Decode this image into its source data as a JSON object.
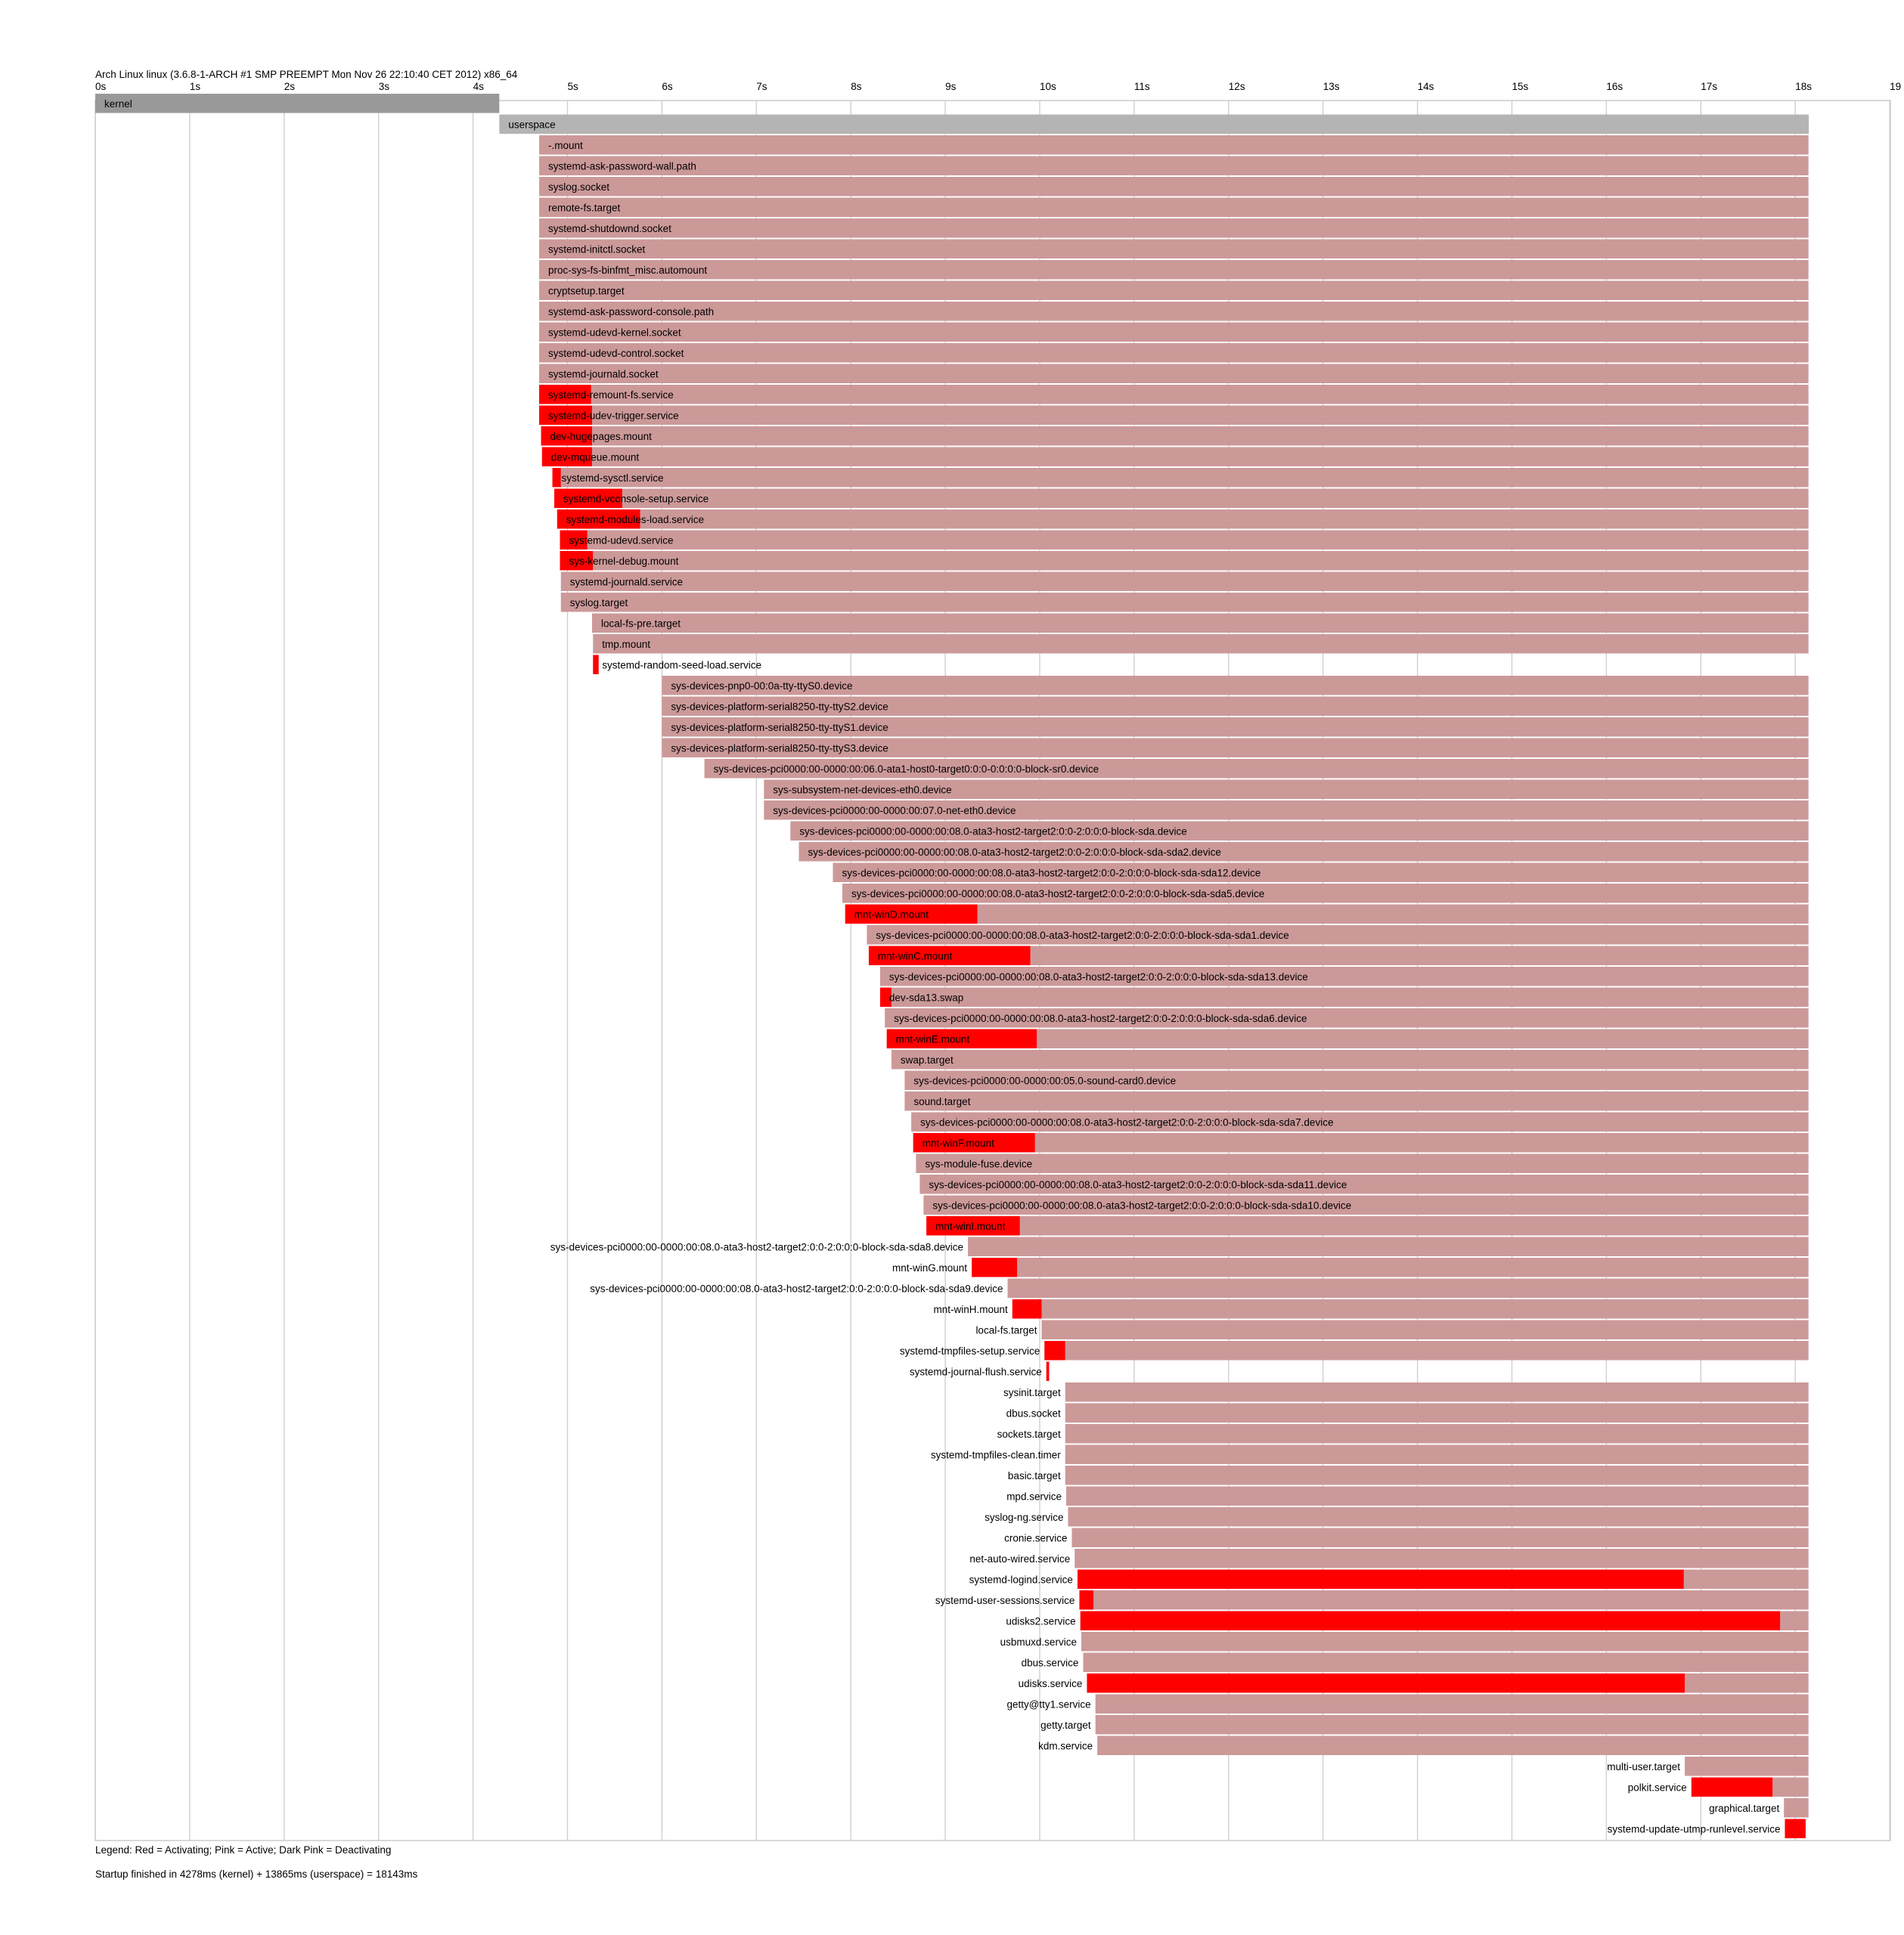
{
  "chart_data": {
    "type": "timeline",
    "title": "Arch Linux linux (3.6.8-1-ARCH #1 SMP PREEMPT Mon Nov 26 22:10:40 CET 2012) x86_64",
    "x_unit": "s",
    "x_ticks": [
      "0s",
      "1s",
      "2s",
      "3s",
      "4s",
      "5s",
      "6s",
      "7s",
      "8s",
      "9s",
      "10s",
      "11s",
      "12s",
      "13s",
      "14s",
      "15s",
      "16s",
      "17s",
      "18s",
      "19"
    ],
    "xlim": [
      0,
      19
    ],
    "legend": "Legend: Red = Activating; Pink = Active; Dark Pink = Deactivating",
    "footer": "Startup finished in 4278ms (kernel) + 13865ms (userspace) = 18143ms",
    "colors": {
      "kernel": "#999999",
      "userspace": "#b4b4b4",
      "active": "#cc9999",
      "activating": "#ff0000",
      "grid": "#cccccc",
      "border": "#cccccc"
    },
    "units": [
      {
        "name": "kernel",
        "start": 0,
        "act_end": 0,
        "end": 4.278,
        "kind": "kernel",
        "label_pos": "inside"
      },
      {
        "name": "userspace",
        "start": 4.278,
        "act_end": 4.278,
        "end": 18.143,
        "kind": "userspace",
        "label_pos": "inside"
      },
      {
        "name": "-.mount",
        "start": 4.7,
        "act_end": 4.7,
        "end": 18.14,
        "label_pos": "inside"
      },
      {
        "name": "systemd-ask-password-wall.path",
        "start": 4.7,
        "act_end": 4.7,
        "end": 18.14,
        "label_pos": "inside"
      },
      {
        "name": "syslog.socket",
        "start": 4.7,
        "act_end": 4.7,
        "end": 18.14,
        "label_pos": "inside"
      },
      {
        "name": "remote-fs.target",
        "start": 4.7,
        "act_end": 4.7,
        "end": 18.14,
        "label_pos": "inside"
      },
      {
        "name": "systemd-shutdownd.socket",
        "start": 4.7,
        "act_end": 4.7,
        "end": 18.14,
        "label_pos": "inside"
      },
      {
        "name": "systemd-initctl.socket",
        "start": 4.7,
        "act_end": 4.7,
        "end": 18.14,
        "label_pos": "inside"
      },
      {
        "name": "proc-sys-fs-binfmt_misc.automount",
        "start": 4.7,
        "act_end": 4.7,
        "end": 18.14,
        "label_pos": "inside"
      },
      {
        "name": "cryptsetup.target",
        "start": 4.7,
        "act_end": 4.7,
        "end": 18.14,
        "label_pos": "inside"
      },
      {
        "name": "systemd-ask-password-console.path",
        "start": 4.7,
        "act_end": 4.7,
        "end": 18.14,
        "label_pos": "inside"
      },
      {
        "name": "systemd-udevd-kernel.socket",
        "start": 4.7,
        "act_end": 4.7,
        "end": 18.14,
        "label_pos": "inside"
      },
      {
        "name": "systemd-udevd-control.socket",
        "start": 4.7,
        "act_end": 4.7,
        "end": 18.14,
        "label_pos": "inside"
      },
      {
        "name": "systemd-journald.socket",
        "start": 4.7,
        "act_end": 4.7,
        "end": 18.14,
        "label_pos": "inside"
      },
      {
        "name": "systemd-remount-fs.service",
        "start": 4.7,
        "act_end": 5.25,
        "end": 18.14,
        "label_pos": "inside"
      },
      {
        "name": "systemd-udev-trigger.service",
        "start": 4.7,
        "act_end": 5.26,
        "end": 18.14,
        "label_pos": "inside"
      },
      {
        "name": "dev-hugepages.mount",
        "start": 4.72,
        "act_end": 5.26,
        "end": 18.14,
        "label_pos": "inside"
      },
      {
        "name": "dev-mqueue.mount",
        "start": 4.73,
        "act_end": 5.26,
        "end": 18.14,
        "label_pos": "inside"
      },
      {
        "name": "systemd-sysctl.service",
        "start": 4.84,
        "act_end": 4.93,
        "end": 18.14,
        "label_pos": "inside"
      },
      {
        "name": "systemd-vconsole-setup.service",
        "start": 4.86,
        "act_end": 5.58,
        "end": 18.14,
        "label_pos": "inside"
      },
      {
        "name": "systemd-modules-load.service",
        "start": 4.89,
        "act_end": 5.77,
        "end": 18.14,
        "label_pos": "inside"
      },
      {
        "name": "systemd-udevd.service",
        "start": 4.92,
        "act_end": 5.21,
        "end": 18.14,
        "label_pos": "inside"
      },
      {
        "name": "sys-kernel-debug.mount",
        "start": 4.92,
        "act_end": 5.27,
        "end": 18.14,
        "label_pos": "inside"
      },
      {
        "name": "systemd-journald.service",
        "start": 4.93,
        "act_end": 4.93,
        "end": 18.14,
        "label_pos": "inside"
      },
      {
        "name": "syslog.target",
        "start": 4.93,
        "act_end": 4.93,
        "end": 18.14,
        "label_pos": "inside"
      },
      {
        "name": "local-fs-pre.target",
        "start": 5.26,
        "act_end": 5.26,
        "end": 18.14,
        "label_pos": "inside"
      },
      {
        "name": "tmp.mount",
        "start": 5.27,
        "act_end": 5.27,
        "end": 18.14,
        "label_pos": "inside"
      },
      {
        "name": "systemd-random-seed-load.service",
        "start": 5.27,
        "act_end": 5.33,
        "end": 5.33,
        "label_pos": "inside"
      },
      {
        "name": "sys-devices-pnp0-00:0a-tty-ttyS0.device",
        "start": 6.0,
        "act_end": 6.0,
        "end": 18.14,
        "label_pos": "inside"
      },
      {
        "name": "sys-devices-platform-serial8250-tty-ttyS2.device",
        "start": 6.0,
        "act_end": 6.0,
        "end": 18.14,
        "label_pos": "inside"
      },
      {
        "name": "sys-devices-platform-serial8250-tty-ttyS1.device",
        "start": 6.0,
        "act_end": 6.0,
        "end": 18.14,
        "label_pos": "inside"
      },
      {
        "name": "sys-devices-platform-serial8250-tty-ttyS3.device",
        "start": 6.0,
        "act_end": 6.0,
        "end": 18.14,
        "label_pos": "inside"
      },
      {
        "name": "sys-devices-pci0000:00-0000:00:06.0-ata1-host0-target0:0:0-0:0:0:0-block-sr0.device",
        "start": 6.45,
        "act_end": 6.45,
        "end": 18.14,
        "label_pos": "inside"
      },
      {
        "name": "sys-subsystem-net-devices-eth0.device",
        "start": 7.08,
        "act_end": 7.08,
        "end": 18.14,
        "label_pos": "inside"
      },
      {
        "name": "sys-devices-pci0000:00-0000:00:07.0-net-eth0.device",
        "start": 7.08,
        "act_end": 7.08,
        "end": 18.14,
        "label_pos": "inside"
      },
      {
        "name": "sys-devices-pci0000:00-0000:00:08.0-ata3-host2-target2:0:0-2:0:0:0-block-sda.device",
        "start": 7.36,
        "act_end": 7.36,
        "end": 18.14,
        "label_pos": "inside"
      },
      {
        "name": "sys-devices-pci0000:00-0000:00:08.0-ata3-host2-target2:0:0-2:0:0:0-block-sda-sda2.device",
        "start": 7.45,
        "act_end": 7.45,
        "end": 18.14,
        "label_pos": "inside"
      },
      {
        "name": "sys-devices-pci0000:00-0000:00:08.0-ata3-host2-target2:0:0-2:0:0:0-block-sda-sda12.device",
        "start": 7.81,
        "act_end": 7.81,
        "end": 18.14,
        "label_pos": "inside"
      },
      {
        "name": "sys-devices-pci0000:00-0000:00:08.0-ata3-host2-target2:0:0-2:0:0:0-block-sda-sda5.device",
        "start": 7.91,
        "act_end": 7.91,
        "end": 18.14,
        "label_pos": "inside"
      },
      {
        "name": "mnt-winD.mount",
        "start": 7.94,
        "act_end": 9.34,
        "end": 18.14,
        "label_pos": "inside"
      },
      {
        "name": "sys-devices-pci0000:00-0000:00:08.0-ata3-host2-target2:0:0-2:0:0:0-block-sda-sda1.device",
        "start": 8.17,
        "act_end": 8.17,
        "end": 18.14,
        "label_pos": "inside"
      },
      {
        "name": "mnt-winC.mount",
        "start": 8.19,
        "act_end": 9.9,
        "end": 18.14,
        "label_pos": "inside"
      },
      {
        "name": "sys-devices-pci0000:00-0000:00:08.0-ata3-host2-target2:0:0-2:0:0:0-block-sda-sda13.device",
        "start": 8.31,
        "act_end": 8.31,
        "end": 18.14,
        "label_pos": "inside"
      },
      {
        "name": "dev-sda13.swap",
        "start": 8.31,
        "act_end": 8.43,
        "end": 18.14,
        "label_pos": "inside"
      },
      {
        "name": "sys-devices-pci0000:00-0000:00:08.0-ata3-host2-target2:0:0-2:0:0:0-block-sda-sda6.device",
        "start": 8.36,
        "act_end": 8.36,
        "end": 18.14,
        "label_pos": "inside"
      },
      {
        "name": "mnt-winE.mount",
        "start": 8.38,
        "act_end": 9.97,
        "end": 18.14,
        "label_pos": "inside"
      },
      {
        "name": "swap.target",
        "start": 8.43,
        "act_end": 8.43,
        "end": 18.14,
        "label_pos": "inside"
      },
      {
        "name": "sys-devices-pci0000:00-0000:00:05.0-sound-card0.device",
        "start": 8.57,
        "act_end": 8.57,
        "end": 18.14,
        "label_pos": "inside"
      },
      {
        "name": "sound.target",
        "start": 8.57,
        "act_end": 8.57,
        "end": 18.14,
        "label_pos": "inside"
      },
      {
        "name": "sys-devices-pci0000:00-0000:00:08.0-ata3-host2-target2:0:0-2:0:0:0-block-sda-sda7.device",
        "start": 8.64,
        "act_end": 8.64,
        "end": 18.14,
        "label_pos": "inside"
      },
      {
        "name": "mnt-winF.mount",
        "start": 8.66,
        "act_end": 9.95,
        "end": 18.14,
        "label_pos": "inside"
      },
      {
        "name": "sys-module-fuse.device",
        "start": 8.69,
        "act_end": 8.69,
        "end": 18.14,
        "label_pos": "inside"
      },
      {
        "name": "sys-devices-pci0000:00-0000:00:08.0-ata3-host2-target2:0:0-2:0:0:0-block-sda-sda11.device",
        "start": 8.73,
        "act_end": 8.73,
        "end": 18.14,
        "label_pos": "inside"
      },
      {
        "name": "sys-devices-pci0000:00-0000:00:08.0-ata3-host2-target2:0:0-2:0:0:0-block-sda-sda10.device",
        "start": 8.77,
        "act_end": 8.77,
        "end": 18.14,
        "label_pos": "inside"
      },
      {
        "name": "mnt-winI.mount",
        "start": 8.8,
        "act_end": 9.79,
        "end": 18.14,
        "label_pos": "inside"
      },
      {
        "name": "sys-devices-pci0000:00-0000:00:08.0-ata3-host2-target2:0:0-2:0:0:0-block-sda-sda8.device",
        "start": 9.24,
        "act_end": 9.24,
        "end": 18.14,
        "label_pos": "left"
      },
      {
        "name": "mnt-winG.mount",
        "start": 9.28,
        "act_end": 9.76,
        "end": 18.14,
        "label_pos": "left"
      },
      {
        "name": "sys-devices-pci0000:00-0000:00:08.0-ata3-host2-target2:0:0-2:0:0:0-block-sda-sda9.device",
        "start": 9.66,
        "act_end": 9.66,
        "end": 18.14,
        "label_pos": "left"
      },
      {
        "name": "mnt-winH.mount",
        "start": 9.71,
        "act_end": 10.02,
        "end": 18.14,
        "label_pos": "left"
      },
      {
        "name": "local-fs.target",
        "start": 10.02,
        "act_end": 10.02,
        "end": 18.14,
        "label_pos": "left"
      },
      {
        "name": "systemd-tmpfiles-setup.service",
        "start": 10.05,
        "act_end": 10.27,
        "end": 18.14,
        "label_pos": "left"
      },
      {
        "name": "systemd-journal-flush.service",
        "start": 10.07,
        "act_end": 10.1,
        "end": 10.1,
        "label_pos": "left"
      },
      {
        "name": "sysinit.target",
        "start": 10.27,
        "act_end": 10.27,
        "end": 18.14,
        "label_pos": "left"
      },
      {
        "name": "dbus.socket",
        "start": 10.27,
        "act_end": 10.27,
        "end": 18.14,
        "label_pos": "left"
      },
      {
        "name": "sockets.target",
        "start": 10.27,
        "act_end": 10.27,
        "end": 18.14,
        "label_pos": "left"
      },
      {
        "name": "systemd-tmpfiles-clean.timer",
        "start": 10.27,
        "act_end": 10.27,
        "end": 18.14,
        "label_pos": "left"
      },
      {
        "name": "basic.target",
        "start": 10.27,
        "act_end": 10.27,
        "end": 18.14,
        "label_pos": "left"
      },
      {
        "name": "mpd.service",
        "start": 10.28,
        "act_end": 10.28,
        "end": 18.14,
        "label_pos": "left"
      },
      {
        "name": "syslog-ng.service",
        "start": 10.3,
        "act_end": 10.3,
        "end": 18.14,
        "label_pos": "left"
      },
      {
        "name": "cronie.service",
        "start": 10.34,
        "act_end": 10.34,
        "end": 18.14,
        "label_pos": "left"
      },
      {
        "name": "net-auto-wired.service",
        "start": 10.37,
        "act_end": 10.37,
        "end": 18.14,
        "label_pos": "left"
      },
      {
        "name": "systemd-logind.service",
        "start": 10.4,
        "act_end": 16.82,
        "end": 18.14,
        "label_pos": "left"
      },
      {
        "name": "systemd-user-sessions.service",
        "start": 10.42,
        "act_end": 10.57,
        "end": 18.14,
        "label_pos": "left"
      },
      {
        "name": "udisks2.service",
        "start": 10.43,
        "act_end": 17.84,
        "end": 18.14,
        "label_pos": "left"
      },
      {
        "name": "usbmuxd.service",
        "start": 10.44,
        "act_end": 10.44,
        "end": 18.14,
        "label_pos": "left"
      },
      {
        "name": "dbus.service",
        "start": 10.46,
        "act_end": 10.46,
        "end": 18.14,
        "label_pos": "left"
      },
      {
        "name": "udisks.service",
        "start": 10.5,
        "act_end": 16.83,
        "end": 18.14,
        "label_pos": "left"
      },
      {
        "name": "getty@tty1.service",
        "start": 10.59,
        "act_end": 10.59,
        "end": 18.14,
        "label_pos": "left"
      },
      {
        "name": "getty.target",
        "start": 10.59,
        "act_end": 10.59,
        "end": 18.14,
        "label_pos": "left"
      },
      {
        "name": "kdm.service",
        "start": 10.61,
        "act_end": 10.61,
        "end": 18.14,
        "label_pos": "left"
      },
      {
        "name": "multi-user.target",
        "start": 16.83,
        "act_end": 16.83,
        "end": 18.14,
        "label_pos": "left"
      },
      {
        "name": "polkit.service",
        "start": 16.9,
        "act_end": 17.76,
        "end": 18.14,
        "label_pos": "left"
      },
      {
        "name": "graphical.target",
        "start": 17.88,
        "act_end": 17.88,
        "end": 18.14,
        "label_pos": "left"
      },
      {
        "name": "systemd-update-utmp-runlevel.service",
        "start": 17.89,
        "act_end": 18.11,
        "end": 18.11,
        "label_pos": "left"
      }
    ]
  }
}
